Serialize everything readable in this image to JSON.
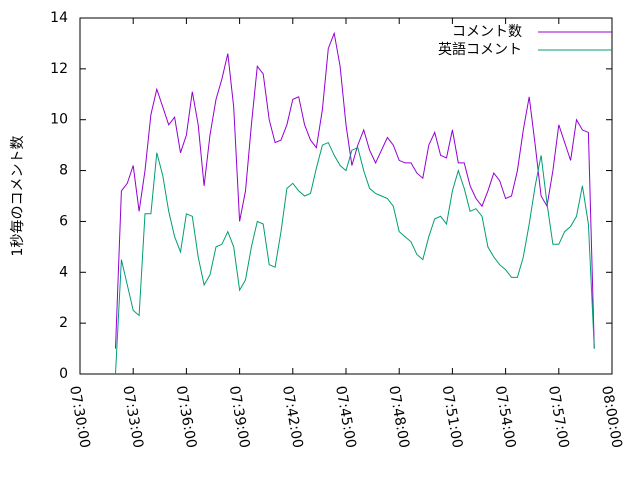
{
  "chart_data": {
    "type": "line",
    "y_label": "1秒毎のコメント数",
    "x": [
      "07:32:00",
      "07:32:20",
      "07:32:40",
      "07:33:00",
      "07:33:20",
      "07:33:40",
      "07:34:00",
      "07:34:20",
      "07:34:40",
      "07:35:00",
      "07:35:20",
      "07:35:40",
      "07:36:00",
      "07:36:20",
      "07:36:40",
      "07:37:00",
      "07:37:20",
      "07:37:40",
      "07:38:00",
      "07:38:20",
      "07:38:40",
      "07:39:00",
      "07:39:20",
      "07:39:40",
      "07:40:00",
      "07:40:20",
      "07:40:40",
      "07:41:00",
      "07:41:20",
      "07:41:40",
      "07:42:00",
      "07:42:20",
      "07:42:40",
      "07:43:00",
      "07:43:20",
      "07:43:40",
      "07:44:00",
      "07:44:20",
      "07:44:40",
      "07:45:00",
      "07:45:20",
      "07:45:40",
      "07:46:00",
      "07:46:20",
      "07:46:40",
      "07:47:00",
      "07:47:20",
      "07:47:40",
      "07:48:00",
      "07:48:20",
      "07:48:40",
      "07:49:00",
      "07:49:20",
      "07:49:40",
      "07:50:00",
      "07:50:20",
      "07:50:40",
      "07:51:00",
      "07:51:20",
      "07:51:40",
      "07:52:00",
      "07:52:20",
      "07:52:40",
      "07:53:00",
      "07:53:20",
      "07:53:40",
      "07:54:00",
      "07:54:20",
      "07:54:40",
      "07:55:00",
      "07:55:20",
      "07:55:40",
      "07:56:00",
      "07:56:20",
      "07:56:40",
      "07:57:00",
      "07:57:20",
      "07:57:40",
      "07:58:00",
      "07:58:20",
      "07:58:40",
      "07:59:00"
    ],
    "series": [
      {
        "name": "コメント数",
        "color": "#9400d3",
        "values": [
          1.0,
          7.2,
          7.5,
          8.2,
          6.4,
          8.0,
          10.2,
          11.2,
          10.5,
          9.8,
          10.1,
          8.7,
          9.4,
          11.1,
          9.8,
          7.4,
          9.4,
          10.8,
          11.6,
          12.6,
          10.5,
          6.0,
          7.2,
          9.8,
          12.1,
          11.8,
          10.0,
          9.1,
          9.2,
          9.8,
          10.8,
          10.9,
          9.8,
          9.2,
          8.9,
          10.4,
          12.8,
          13.4,
          12.1,
          9.8,
          8.2,
          9.0,
          9.6,
          8.8,
          8.3,
          8.8,
          9.3,
          9.0,
          8.4,
          8.3,
          8.3,
          7.9,
          7.7,
          9.0,
          9.5,
          8.6,
          8.5,
          9.6,
          8.3,
          8.3,
          7.4,
          6.9,
          6.6,
          7.2,
          7.9,
          7.6,
          6.9,
          7.0,
          8.0,
          9.6,
          10.9,
          9.0,
          7.0,
          6.6,
          8.0,
          9.8,
          9.1,
          8.4,
          10.0,
          9.6,
          9.5,
          1.0
        ]
      },
      {
        "name": "英語コメント",
        "color": "#009e73",
        "values": [
          0,
          4.5,
          3.5,
          2.5,
          2.3,
          6.3,
          6.3,
          8.7,
          7.8,
          6.4,
          5.4,
          4.8,
          6.3,
          6.2,
          4.6,
          3.5,
          3.9,
          5.0,
          5.1,
          5.6,
          5.0,
          3.3,
          3.7,
          5.0,
          6.0,
          5.9,
          4.3,
          4.2,
          5.6,
          7.3,
          7.5,
          7.2,
          7.0,
          7.1,
          8.1,
          9.0,
          9.1,
          8.6,
          8.2,
          8.0,
          8.8,
          8.9,
          8.0,
          7.3,
          7.1,
          7.0,
          6.9,
          6.6,
          5.6,
          5.4,
          5.2,
          4.7,
          4.5,
          5.4,
          6.1,
          6.2,
          5.9,
          7.2,
          8.0,
          7.3,
          6.4,
          6.5,
          6.2,
          5.0,
          4.6,
          4.3,
          4.1,
          3.8,
          3.8,
          4.6,
          5.9,
          7.4,
          8.6,
          6.7,
          5.1,
          5.1,
          5.6,
          5.8,
          6.2,
          7.4,
          5.9,
          1.0
        ]
      }
    ],
    "xlim": [
      "07:30:00",
      "08:00:00"
    ],
    "xticks": [
      "07:30:00",
      "07:33:00",
      "07:36:00",
      "07:39:00",
      "07:42:00",
      "07:45:00",
      "07:48:00",
      "07:51:00",
      "07:54:00",
      "07:57:00",
      "08:00:00"
    ],
    "ylim": [
      0,
      14
    ],
    "yticks": [
      0,
      2,
      4,
      6,
      8,
      10,
      12,
      14
    ],
    "legend": "top-right"
  }
}
